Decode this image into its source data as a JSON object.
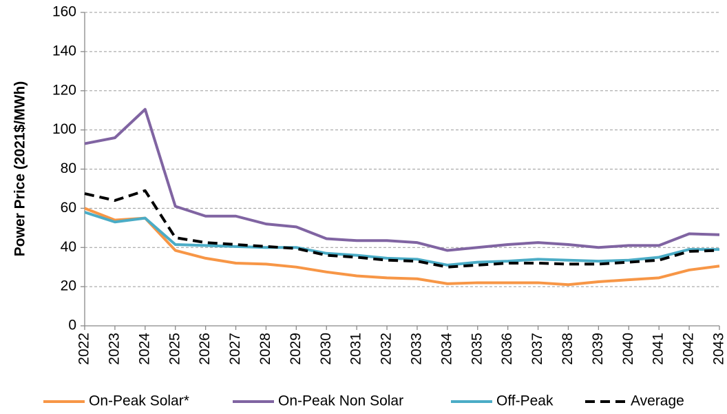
{
  "chart_data": {
    "type": "line",
    "ylabel": "Power Price (2021$/MWh)",
    "categories": [
      "2022",
      "2023",
      "2024",
      "2025",
      "2026",
      "2027",
      "2028",
      "2029",
      "2030",
      "2031",
      "2032",
      "2033",
      "2034",
      "2035",
      "2036",
      "2037",
      "2038",
      "2039",
      "2040",
      "2041",
      "2042",
      "2043"
    ],
    "series": [
      {
        "name": "On-Peak Solar*",
        "color": "#f79646",
        "values": [
          60,
          54,
          55,
          38.5,
          34.5,
          32,
          31.5,
          30,
          27.5,
          25.5,
          24.5,
          24,
          21.5,
          22,
          22,
          22,
          21,
          22.5,
          23.5,
          24.5,
          28.5,
          30.5
        ]
      },
      {
        "name": "On-Peak Non Solar",
        "color": "#8064a2",
        "values": [
          93,
          96,
          110.5,
          61,
          56,
          56,
          52,
          50.5,
          44.5,
          43.5,
          43.5,
          42.5,
          38.5,
          40,
          41.5,
          42.5,
          41.5,
          40,
          41,
          41,
          47,
          46.5
        ]
      },
      {
        "name": "Off-Peak",
        "color": "#4bacc6",
        "values": [
          58,
          53,
          55,
          41.5,
          41,
          40.5,
          40,
          40,
          37,
          36,
          34.5,
          34,
          31,
          32.5,
          33,
          34,
          33.5,
          33,
          33.5,
          35,
          39,
          39
        ]
      },
      {
        "name": "Average",
        "color": "#000000",
        "dashed": true,
        "values": [
          67.5,
          64,
          69,
          45,
          42.5,
          41.5,
          40.5,
          39.5,
          36,
          35,
          33.5,
          33,
          30,
          31,
          32,
          32,
          31.5,
          31.5,
          32.5,
          33.5,
          38,
          38.5
        ]
      }
    ],
    "ylim": [
      0,
      160
    ],
    "yticks": [
      0,
      20,
      40,
      60,
      80,
      100,
      120,
      140,
      160
    ],
    "grid": true,
    "legend": "bottom"
  }
}
